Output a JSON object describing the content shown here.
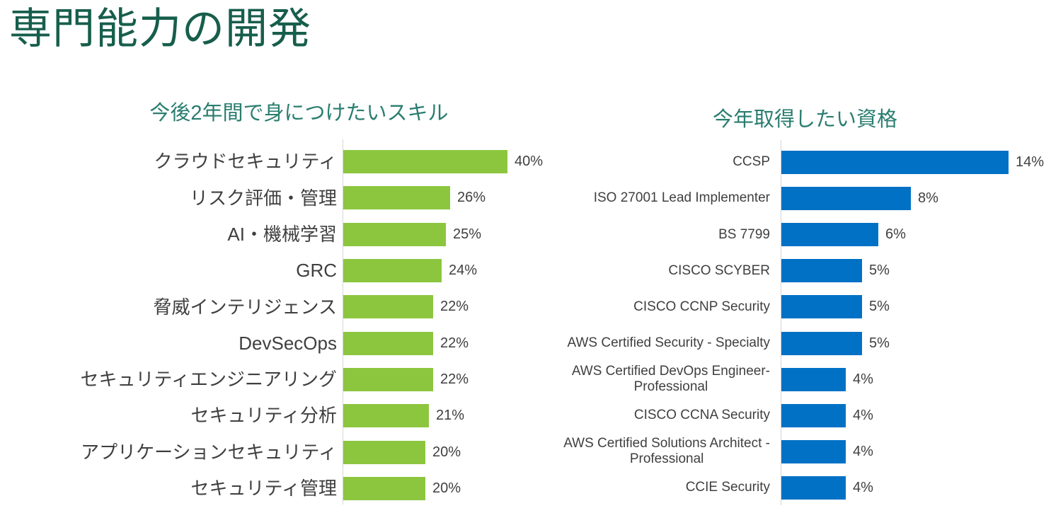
{
  "page": {
    "title": "専門能力の開発"
  },
  "colors": {
    "main_title": "#175E4C",
    "chart_title": "#2A7D6F",
    "label_text": "#3F3F3F",
    "axis_line": "#D6D6D6",
    "skills_bar": "#8CC63F",
    "certs_bar": "#0071C5"
  },
  "chart_data": [
    {
      "type": "bar",
      "orientation": "horizontal",
      "title": "今後2年間で身につけたいスキル",
      "bar_color": "#8CC63F",
      "xlim": [
        0,
        40
      ],
      "value_suffix": "%",
      "legend": false,
      "grid": false,
      "categories": [
        "クラウドセキュリティ",
        "リスク評価・管理",
        "AI・機械学習",
        "GRC",
        "脅威インテリジェンス",
        "DevSecOps",
        "セキュリティエンジニアリング",
        "セキュリティ分析",
        "アプリケーションセキュリティ",
        "セキュリティ管理"
      ],
      "values": [
        40,
        26,
        25,
        24,
        22,
        22,
        22,
        21,
        20,
        20
      ],
      "value_labels": [
        "40%",
        "26%",
        "25%",
        "24%",
        "22%",
        "22%",
        "22%",
        "21%",
        "20%",
        "20%"
      ]
    },
    {
      "type": "bar",
      "orientation": "horizontal",
      "title": "今年取得したい資格",
      "bar_color": "#0071C5",
      "xlim": [
        0,
        14
      ],
      "value_suffix": "%",
      "legend": false,
      "grid": false,
      "categories": [
        "CCSP",
        "ISO 27001 Lead Implementer",
        "BS 7799",
        "CISCO SCYBER",
        "CISCO CCNP Security",
        "AWS Certified Security - Specialty",
        "AWS Certified DevOps Engineer-\nProfessional",
        "CISCO CCNA Security",
        "AWS Certified Solutions Architect -\nProfessional",
        "CCIE Security"
      ],
      "values": [
        14,
        8,
        6,
        5,
        5,
        5,
        4,
        4,
        4,
        4
      ],
      "value_labels": [
        "14%",
        "8%",
        "6%",
        "5%",
        "5%",
        "5%",
        "4%",
        "4%",
        "4%",
        "4%"
      ]
    }
  ]
}
